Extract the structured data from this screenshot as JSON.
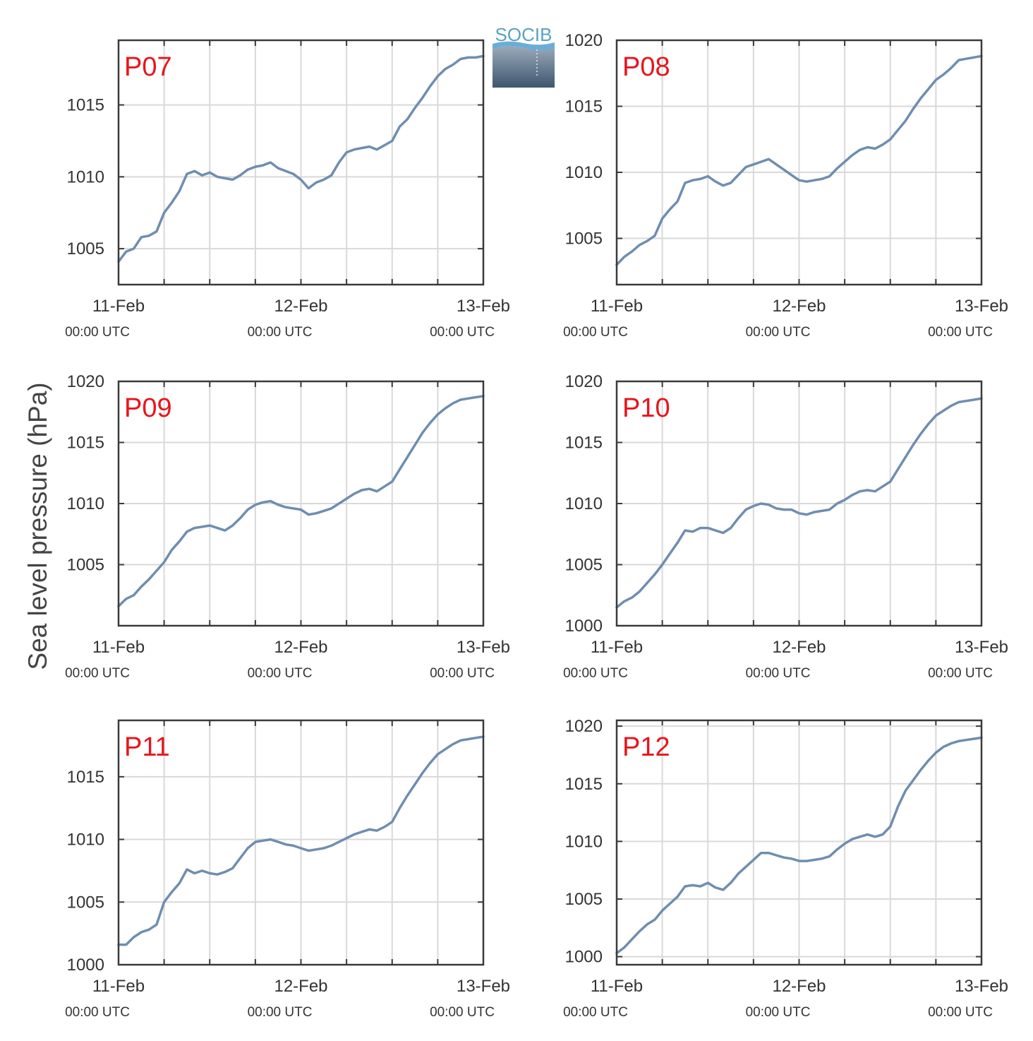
{
  "ylabel": "Sea level pressure (hPa)",
  "logo": {
    "text": "SOCIB",
    "accent": "#5aa0c8"
  },
  "colors": {
    "series": "#6f8eaf",
    "title": "#e8141c"
  },
  "x_ticks": [
    {
      "date": "11-Feb",
      "time": "00:00 UTC"
    },
    {
      "date": "12-Feb",
      "time": "00:00 UTC"
    },
    {
      "date": "13-Feb",
      "time": "00:00 UTC"
    }
  ],
  "chart_data": [
    {
      "type": "line",
      "title": "P07",
      "xlabel": "",
      "ylabel": "",
      "xlim": [
        0,
        48
      ],
      "ylim": [
        1002.5,
        1019.5
      ],
      "yticks": [
        1005,
        1010,
        1015
      ],
      "x_tick_labels": [
        "11-Feb 00:00 UTC",
        "12-Feb 00:00 UTC",
        "13-Feb 00:00 UTC"
      ],
      "grid": true,
      "series": [
        {
          "x": [
            0,
            1,
            2,
            3,
            4,
            5,
            6,
            7,
            8,
            9,
            10,
            11,
            12,
            13,
            14,
            15,
            16,
            17,
            18,
            19,
            20,
            21,
            22,
            23,
            24,
            25,
            26,
            27,
            28,
            29,
            30,
            31,
            32,
            33,
            34,
            35,
            36,
            37,
            38,
            39,
            40,
            41,
            42,
            43,
            44,
            45,
            46,
            47,
            48
          ],
          "y": [
            1004.1,
            1004.8,
            1005.0,
            1005.8,
            1005.9,
            1006.2,
            1007.5,
            1008.2,
            1009.0,
            1010.2,
            1010.4,
            1010.1,
            1010.3,
            1010.0,
            1009.9,
            1009.8,
            1010.1,
            1010.5,
            1010.7,
            1010.8,
            1011.0,
            1010.6,
            1010.4,
            1010.2,
            1009.8,
            1009.2,
            1009.6,
            1009.8,
            1010.1,
            1011.0,
            1011.7,
            1011.9,
            1012.0,
            1012.1,
            1011.9,
            1012.2,
            1012.5,
            1013.5,
            1014.0,
            1014.8,
            1015.5,
            1016.3,
            1017.0,
            1017.5,
            1017.8,
            1018.2,
            1018.3,
            1018.3,
            1018.4
          ]
        }
      ]
    },
    {
      "type": "line",
      "title": "P08",
      "xlabel": "",
      "ylabel": "",
      "xlim": [
        0,
        48
      ],
      "ylim": [
        1001.5,
        1020
      ],
      "yticks": [
        1005,
        1010,
        1015,
        1020
      ],
      "x_tick_labels": [
        "11-Feb 00:00 UTC",
        "12-Feb 00:00 UTC",
        "13-Feb 00:00 UTC"
      ],
      "grid": true,
      "series": [
        {
          "x": [
            0,
            1,
            2,
            3,
            4,
            5,
            6,
            7,
            8,
            9,
            10,
            11,
            12,
            13,
            14,
            15,
            16,
            17,
            18,
            19,
            20,
            21,
            22,
            23,
            24,
            25,
            26,
            27,
            28,
            29,
            30,
            31,
            32,
            33,
            34,
            35,
            36,
            37,
            38,
            39,
            40,
            41,
            42,
            43,
            44,
            45,
            46,
            47,
            48
          ],
          "y": [
            1003.0,
            1003.6,
            1004.0,
            1004.5,
            1004.8,
            1005.2,
            1006.5,
            1007.2,
            1007.8,
            1009.2,
            1009.4,
            1009.5,
            1009.7,
            1009.3,
            1009.0,
            1009.2,
            1009.8,
            1010.4,
            1010.6,
            1010.8,
            1011.0,
            1010.6,
            1010.2,
            1009.8,
            1009.4,
            1009.3,
            1009.4,
            1009.5,
            1009.7,
            1010.3,
            1010.8,
            1011.3,
            1011.7,
            1011.9,
            1011.8,
            1012.1,
            1012.5,
            1013.2,
            1013.9,
            1014.8,
            1015.6,
            1016.3,
            1017.0,
            1017.4,
            1017.9,
            1018.5,
            1018.6,
            1018.7,
            1018.8
          ]
        }
      ]
    },
    {
      "type": "line",
      "title": "P09",
      "xlabel": "",
      "ylabel": "",
      "xlim": [
        0,
        48
      ],
      "ylim": [
        1000,
        1020
      ],
      "yticks": [
        1005,
        1010,
        1015,
        1020
      ],
      "x_tick_labels": [
        "11-Feb 00:00 UTC",
        "12-Feb 00:00 UTC",
        "13-Feb 00:00 UTC"
      ],
      "grid": true,
      "series": [
        {
          "x": [
            0,
            1,
            2,
            3,
            4,
            5,
            6,
            7,
            8,
            9,
            10,
            11,
            12,
            13,
            14,
            15,
            16,
            17,
            18,
            19,
            20,
            21,
            22,
            23,
            24,
            25,
            26,
            27,
            28,
            29,
            30,
            31,
            32,
            33,
            34,
            35,
            36,
            37,
            38,
            39,
            40,
            41,
            42,
            43,
            44,
            45,
            46,
            47,
            48
          ],
          "y": [
            1001.6,
            1002.2,
            1002.5,
            1003.2,
            1003.8,
            1004.5,
            1005.2,
            1006.2,
            1006.9,
            1007.7,
            1008.0,
            1008.1,
            1008.2,
            1008.0,
            1007.8,
            1008.2,
            1008.8,
            1009.5,
            1009.9,
            1010.1,
            1010.2,
            1009.9,
            1009.7,
            1009.6,
            1009.5,
            1009.1,
            1009.2,
            1009.4,
            1009.6,
            1010.0,
            1010.4,
            1010.8,
            1011.1,
            1011.2,
            1011.0,
            1011.4,
            1011.8,
            1012.8,
            1013.8,
            1014.8,
            1015.8,
            1016.6,
            1017.3,
            1017.8,
            1018.2,
            1018.5,
            1018.6,
            1018.7,
            1018.8
          ]
        }
      ]
    },
    {
      "type": "line",
      "title": "P10",
      "xlabel": "",
      "ylabel": "",
      "xlim": [
        0,
        48
      ],
      "ylim": [
        1000,
        1020
      ],
      "yticks": [
        1000,
        1005,
        1010,
        1015,
        1020
      ],
      "x_tick_labels": [
        "11-Feb 00:00 UTC",
        "12-Feb 00:00 UTC",
        "13-Feb 00:00 UTC"
      ],
      "grid": true,
      "series": [
        {
          "x": [
            0,
            1,
            2,
            3,
            4,
            5,
            6,
            7,
            8,
            9,
            10,
            11,
            12,
            13,
            14,
            15,
            16,
            17,
            18,
            19,
            20,
            21,
            22,
            23,
            24,
            25,
            26,
            27,
            28,
            29,
            30,
            31,
            32,
            33,
            34,
            35,
            36,
            37,
            38,
            39,
            40,
            41,
            42,
            43,
            44,
            45,
            46,
            47,
            48
          ],
          "y": [
            1001.5,
            1002.0,
            1002.3,
            1002.8,
            1003.5,
            1004.2,
            1005.0,
            1005.9,
            1006.8,
            1007.8,
            1007.7,
            1008.0,
            1008.0,
            1007.8,
            1007.6,
            1008.0,
            1008.8,
            1009.5,
            1009.8,
            1010.0,
            1009.9,
            1009.6,
            1009.5,
            1009.5,
            1009.2,
            1009.1,
            1009.3,
            1009.4,
            1009.5,
            1010.0,
            1010.3,
            1010.7,
            1011.0,
            1011.1,
            1011.0,
            1011.4,
            1011.8,
            1012.8,
            1013.8,
            1014.8,
            1015.7,
            1016.5,
            1017.2,
            1017.6,
            1018.0,
            1018.3,
            1018.4,
            1018.5,
            1018.6
          ]
        }
      ]
    },
    {
      "type": "line",
      "title": "P11",
      "xlabel": "",
      "ylabel": "",
      "xlim": [
        0,
        48
      ],
      "ylim": [
        1000,
        1019.5
      ],
      "yticks": [
        1000,
        1005,
        1010,
        1015
      ],
      "x_tick_labels": [
        "11-Feb 00:00 UTC",
        "12-Feb 00:00 UTC",
        "13-Feb 00:00 UTC"
      ],
      "grid": true,
      "series": [
        {
          "x": [
            0,
            1,
            2,
            3,
            4,
            5,
            6,
            7,
            8,
            9,
            10,
            11,
            12,
            13,
            14,
            15,
            16,
            17,
            18,
            19,
            20,
            21,
            22,
            23,
            24,
            25,
            26,
            27,
            28,
            29,
            30,
            31,
            32,
            33,
            34,
            35,
            36,
            37,
            38,
            39,
            40,
            41,
            42,
            43,
            44,
            45,
            46,
            47,
            48
          ],
          "y": [
            1001.6,
            1001.6,
            1002.2,
            1002.6,
            1002.8,
            1003.2,
            1005.0,
            1005.8,
            1006.5,
            1007.6,
            1007.3,
            1007.5,
            1007.3,
            1007.2,
            1007.4,
            1007.7,
            1008.5,
            1009.3,
            1009.8,
            1009.9,
            1010.0,
            1009.8,
            1009.6,
            1009.5,
            1009.3,
            1009.1,
            1009.2,
            1009.3,
            1009.5,
            1009.8,
            1010.1,
            1010.4,
            1010.6,
            1010.8,
            1010.7,
            1011.0,
            1011.4,
            1012.5,
            1013.5,
            1014.4,
            1015.3,
            1016.1,
            1016.8,
            1017.2,
            1017.6,
            1017.9,
            1018.0,
            1018.1,
            1018.2
          ]
        }
      ]
    },
    {
      "type": "line",
      "title": "P12",
      "xlabel": "",
      "ylabel": "",
      "xlim": [
        0,
        48
      ],
      "ylim": [
        999.3,
        1020.5
      ],
      "yticks": [
        1000,
        1005,
        1010,
        1015,
        1020
      ],
      "x_tick_labels": [
        "11-Feb 00:00 UTC",
        "12-Feb 00:00 UTC",
        "13-Feb 00:00 UTC"
      ],
      "grid": true,
      "series": [
        {
          "x": [
            0,
            1,
            2,
            3,
            4,
            5,
            6,
            7,
            8,
            9,
            10,
            11,
            12,
            13,
            14,
            15,
            16,
            17,
            18,
            19,
            20,
            21,
            22,
            23,
            24,
            25,
            26,
            27,
            28,
            29,
            30,
            31,
            32,
            33,
            34,
            35,
            36,
            37,
            38,
            39,
            40,
            41,
            42,
            43,
            44,
            45,
            46,
            47,
            48
          ],
          "y": [
            1000.3,
            1000.8,
            1001.5,
            1002.2,
            1002.8,
            1003.2,
            1004.0,
            1004.6,
            1005.2,
            1006.1,
            1006.2,
            1006.1,
            1006.4,
            1006.0,
            1005.8,
            1006.4,
            1007.2,
            1007.8,
            1008.4,
            1009.0,
            1009.0,
            1008.8,
            1008.6,
            1008.5,
            1008.3,
            1008.3,
            1008.4,
            1008.5,
            1008.7,
            1009.3,
            1009.8,
            1010.2,
            1010.4,
            1010.6,
            1010.4,
            1010.6,
            1011.3,
            1013.0,
            1014.4,
            1015.3,
            1016.2,
            1017.0,
            1017.7,
            1018.2,
            1018.5,
            1018.7,
            1018.8,
            1018.9,
            1019.0
          ]
        }
      ]
    }
  ]
}
